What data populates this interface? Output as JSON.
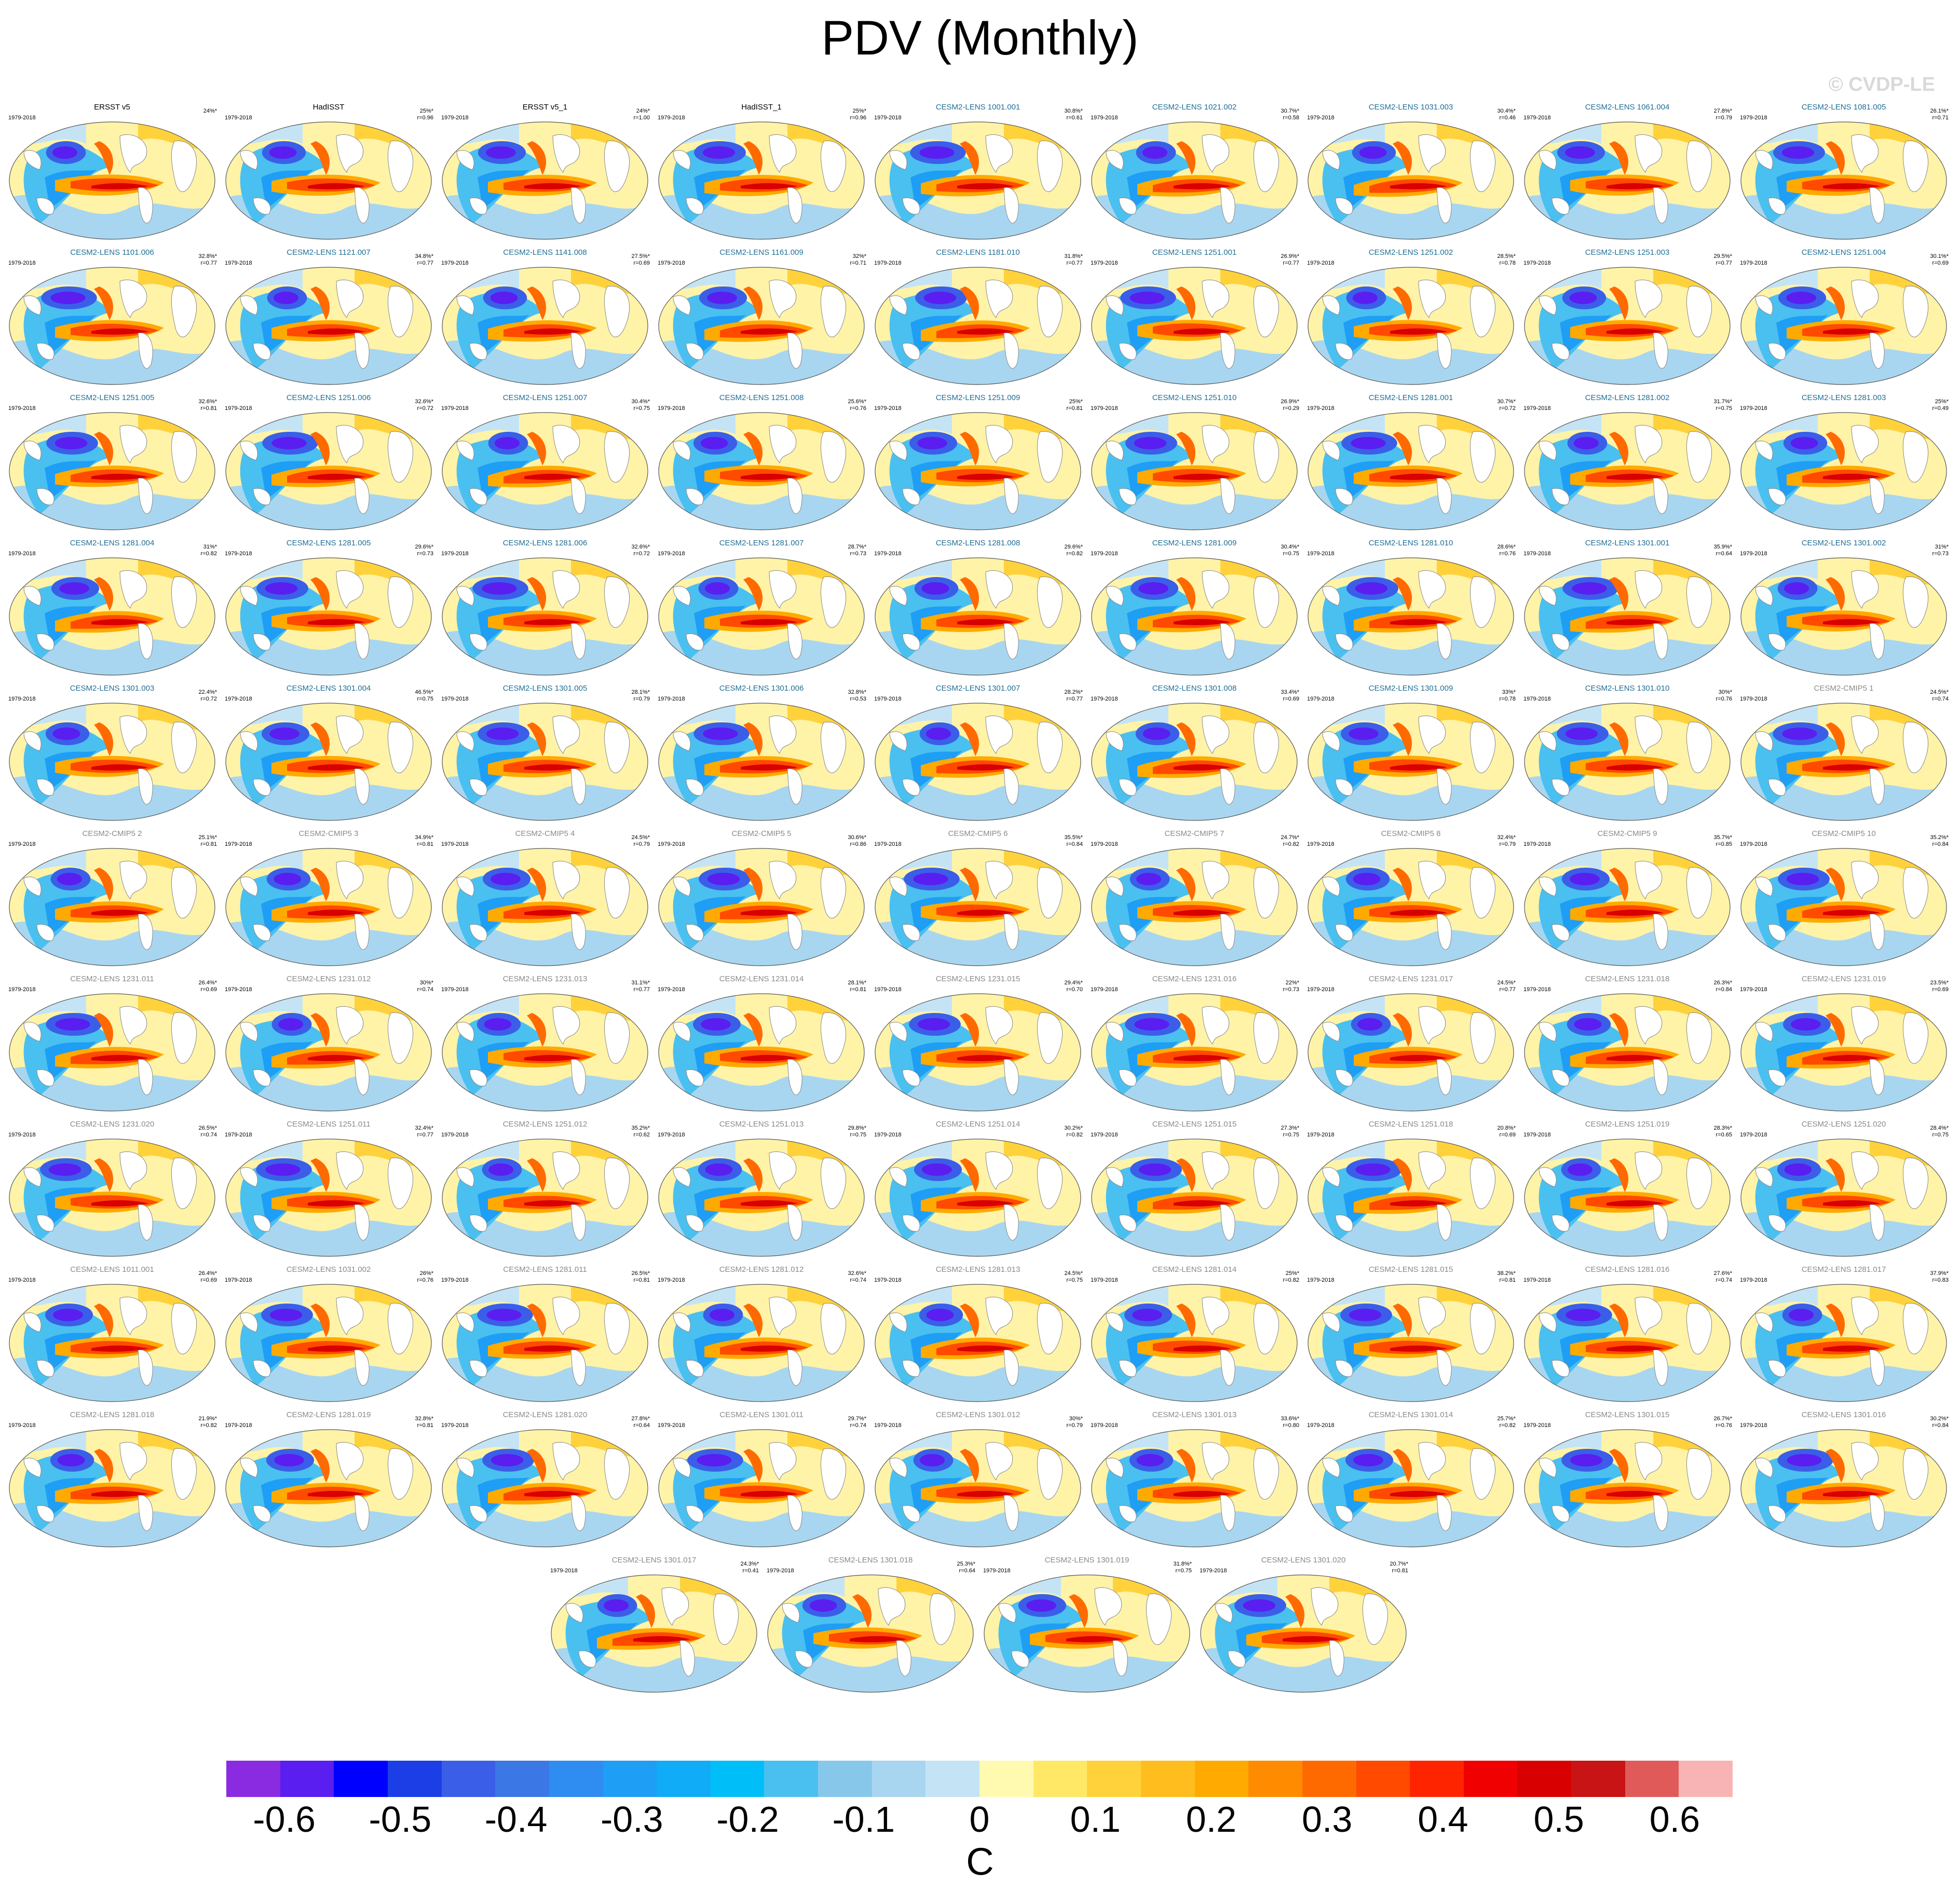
{
  "title": "PDV (Monthly)",
  "watermark": "© CVDP-LE",
  "chart_data": {
    "type": "heatmap",
    "title": "PDV (Monthly)",
    "variable": "SST regression pattern (global maps)",
    "unit": "C",
    "colorbar": {
      "ticks": [
        "-0.6",
        "-0.5",
        "-0.4",
        "-0.3",
        "-0.2",
        "-0.1",
        "0",
        "0.1",
        "0.2",
        "0.3",
        "0.4",
        "0.5",
        "0.6"
      ],
      "colors": [
        "#8a2be2",
        "#5a1ef0",
        "#0000ff",
        "#1c3ee6",
        "#3b5ee8",
        "#3b78e6",
        "#2f8cf0",
        "#1e9ef5",
        "#10acf7",
        "#00bff8",
        "#4ac0f0",
        "#87c8ea",
        "#a8d6f0",
        "#c4e4f5",
        "#fffab0",
        "#ffe866",
        "#ffd23c",
        "#ffbe1e",
        "#ffaa00",
        "#ff8c00",
        "#ff6a00",
        "#ff4a00",
        "#ff2400",
        "#f00000",
        "#d80000",
        "#c81414",
        "#e05a5a",
        "#f8b4b4"
      ],
      "range": [
        -0.65,
        0.65
      ]
    },
    "panels": [
      {
        "name": "ERSST v5",
        "period": "1979-2018",
        "pct": "24%*",
        "r": "",
        "kind": "obs"
      },
      {
        "name": "HadISST",
        "period": "1979-2018",
        "pct": "25%*",
        "r": "r=0.96",
        "kind": "obs"
      },
      {
        "name": "ERSST v5_1",
        "period": "1979-2018",
        "pct": "24%*",
        "r": "r=1.00",
        "kind": "obs"
      },
      {
        "name": "HadISST_1",
        "period": "1979-2018",
        "pct": "25%*",
        "r": "r=0.96",
        "kind": "obs"
      },
      {
        "name": "CESM2-LENS 1001.001",
        "period": "1979-2018",
        "pct": "30.8%*",
        "r": "r=0.61",
        "kind": "lens"
      },
      {
        "name": "CESM2-LENS 1021.002",
        "period": "1979-2018",
        "pct": "30.7%*",
        "r": "r=0.58",
        "kind": "lens"
      },
      {
        "name": "CESM2-LENS 1031.003",
        "period": "1979-2018",
        "pct": "30.4%*",
        "r": "r=0.46",
        "kind": "lens"
      },
      {
        "name": "CESM2-LENS 1061.004",
        "period": "1979-2018",
        "pct": "27.8%*",
        "r": "r=0.79",
        "kind": "lens"
      },
      {
        "name": "CESM2-LENS 1081.005",
        "period": "1979-2018",
        "pct": "26.1%*",
        "r": "r=0.71",
        "kind": "lens"
      },
      {
        "name": "CESM2-LENS 1101.006",
        "period": "1979-2018",
        "pct": "32.8%*",
        "r": "r=0.77",
        "kind": "lens"
      },
      {
        "name": "CESM2-LENS 1121.007",
        "period": "1979-2018",
        "pct": "34.8%*",
        "r": "r=0.77",
        "kind": "lens"
      },
      {
        "name": "CESM2-LENS 1141.008",
        "period": "1979-2018",
        "pct": "27.5%*",
        "r": "r=0.69",
        "kind": "lens"
      },
      {
        "name": "CESM2-LENS 1161.009",
        "period": "1979-2018",
        "pct": "32%*",
        "r": "r=0.71",
        "kind": "lens"
      },
      {
        "name": "CESM2-LENS 1181.010",
        "period": "1979-2018",
        "pct": "31.8%*",
        "r": "r=0.77",
        "kind": "lens"
      },
      {
        "name": "CESM2-LENS 1251.001",
        "period": "1979-2018",
        "pct": "26.9%*",
        "r": "r=0.77",
        "kind": "lens"
      },
      {
        "name": "CESM2-LENS 1251.002",
        "period": "1979-2018",
        "pct": "28.5%*",
        "r": "r=0.78",
        "kind": "lens"
      },
      {
        "name": "CESM2-LENS 1251.003",
        "period": "1979-2018",
        "pct": "29.5%*",
        "r": "r=0.77",
        "kind": "lens"
      },
      {
        "name": "CESM2-LENS 1251.004",
        "period": "1979-2018",
        "pct": "30.1%*",
        "r": "r=0.69",
        "kind": "lens"
      },
      {
        "name": "CESM2-LENS 1251.005",
        "period": "1979-2018",
        "pct": "32.6%*",
        "r": "r=0.81",
        "kind": "lens"
      },
      {
        "name": "CESM2-LENS 1251.006",
        "period": "1979-2018",
        "pct": "32.6%*",
        "r": "r=0.72",
        "kind": "lens"
      },
      {
        "name": "CESM2-LENS 1251.007",
        "period": "1979-2018",
        "pct": "30.4%*",
        "r": "r=0.75",
        "kind": "lens"
      },
      {
        "name": "CESM2-LENS 1251.008",
        "period": "1979-2018",
        "pct": "25.6%*",
        "r": "r=0.76",
        "kind": "lens"
      },
      {
        "name": "CESM2-LENS 1251.009",
        "period": "1979-2018",
        "pct": "25%*",
        "r": "r=0.81",
        "kind": "lens"
      },
      {
        "name": "CESM2-LENS 1251.010",
        "period": "1979-2018",
        "pct": "26.9%*",
        "r": "r=0.29",
        "kind": "lens"
      },
      {
        "name": "CESM2-LENS 1281.001",
        "period": "1979-2018",
        "pct": "30.7%*",
        "r": "r=0.72",
        "kind": "lens"
      },
      {
        "name": "CESM2-LENS 1281.002",
        "period": "1979-2018",
        "pct": "31.7%*",
        "r": "r=0.75",
        "kind": "lens"
      },
      {
        "name": "CESM2-LENS 1281.003",
        "period": "1979-2018",
        "pct": "25%*",
        "r": "r=0.49",
        "kind": "lens"
      },
      {
        "name": "CESM2-LENS 1281.004",
        "period": "1979-2018",
        "pct": "31%*",
        "r": "r=0.82",
        "kind": "lens"
      },
      {
        "name": "CESM2-LENS 1281.005",
        "period": "1979-2018",
        "pct": "29.6%*",
        "r": "r=0.73",
        "kind": "lens"
      },
      {
        "name": "CESM2-LENS 1281.006",
        "period": "1979-2018",
        "pct": "32.6%*",
        "r": "r=0.72",
        "kind": "lens"
      },
      {
        "name": "CESM2-LENS 1281.007",
        "period": "1979-2018",
        "pct": "28.7%*",
        "r": "r=0.73",
        "kind": "lens"
      },
      {
        "name": "CESM2-LENS 1281.008",
        "period": "1979-2018",
        "pct": "29.6%*",
        "r": "r=0.82",
        "kind": "lens"
      },
      {
        "name": "CESM2-LENS 1281.009",
        "period": "1979-2018",
        "pct": "30.4%*",
        "r": "r=0.75",
        "kind": "lens"
      },
      {
        "name": "CESM2-LENS 1281.010",
        "period": "1979-2018",
        "pct": "28.6%*",
        "r": "r=0.76",
        "kind": "lens"
      },
      {
        "name": "CESM2-LENS 1301.001",
        "period": "1979-2018",
        "pct": "35.9%*",
        "r": "r=0.64",
        "kind": "lens"
      },
      {
        "name": "CESM2-LENS 1301.002",
        "period": "1979-2018",
        "pct": "31%*",
        "r": "r=0.73",
        "kind": "lens"
      },
      {
        "name": "CESM2-LENS 1301.003",
        "period": "1979-2018",
        "pct": "22.4%*",
        "r": "r=0.72",
        "kind": "lens"
      },
      {
        "name": "CESM2-LENS 1301.004",
        "period": "1979-2018",
        "pct": "46.5%*",
        "r": "r=0.75",
        "kind": "lens"
      },
      {
        "name": "CESM2-LENS 1301.005",
        "period": "1979-2018",
        "pct": "28.1%*",
        "r": "r=0.79",
        "kind": "lens"
      },
      {
        "name": "CESM2-LENS 1301.006",
        "period": "1979-2018",
        "pct": "32.8%*",
        "r": "r=0.53",
        "kind": "lens"
      },
      {
        "name": "CESM2-LENS 1301.007",
        "period": "1979-2018",
        "pct": "28.2%*",
        "r": "r=0.77",
        "kind": "lens"
      },
      {
        "name": "CESM2-LENS 1301.008",
        "period": "1979-2018",
        "pct": "33.4%*",
        "r": "r=0.69",
        "kind": "lens"
      },
      {
        "name": "CESM2-LENS 1301.009",
        "period": "1979-2018",
        "pct": "33%*",
        "r": "r=0.78",
        "kind": "lens"
      },
      {
        "name": "CESM2-LENS 1301.010",
        "period": "1979-2018",
        "pct": "30%*",
        "r": "r=0.76",
        "kind": "lens"
      },
      {
        "name": "CESM2-CMIP5 1",
        "period": "1979-2018",
        "pct": "24.5%*",
        "r": "r=0.74",
        "kind": "other"
      },
      {
        "name": "CESM2-CMIP5 2",
        "period": "1979-2018",
        "pct": "25.1%*",
        "r": "r=0.81",
        "kind": "other"
      },
      {
        "name": "CESM2-CMIP5 3",
        "period": "1979-2018",
        "pct": "34.9%*",
        "r": "r=0.81",
        "kind": "other"
      },
      {
        "name": "CESM2-CMIP5 4",
        "period": "1979-2018",
        "pct": "24.5%*",
        "r": "r=0.79",
        "kind": "other"
      },
      {
        "name": "CESM2-CMIP5 5",
        "period": "1979-2018",
        "pct": "30.6%*",
        "r": "r=0.86",
        "kind": "other"
      },
      {
        "name": "CESM2-CMIP5 6",
        "period": "1979-2018",
        "pct": "35.5%*",
        "r": "r=0.84",
        "kind": "other"
      },
      {
        "name": "CESM2-CMIP5 7",
        "period": "1979-2018",
        "pct": "24.7%*",
        "r": "r=0.82",
        "kind": "other"
      },
      {
        "name": "CESM2-CMIP5 8",
        "period": "1979-2018",
        "pct": "32.4%*",
        "r": "r=0.79",
        "kind": "other"
      },
      {
        "name": "CESM2-CMIP5 9",
        "period": "1979-2018",
        "pct": "35.7%*",
        "r": "r=0.85",
        "kind": "other"
      },
      {
        "name": "CESM2-CMIP5 10",
        "period": "1979-2018",
        "pct": "35.2%*",
        "r": "r=0.84",
        "kind": "other"
      },
      {
        "name": "CESM2-LENS 1231.011",
        "period": "1979-2018",
        "pct": "26.4%*",
        "r": "r=0.69",
        "kind": "other"
      },
      {
        "name": "CESM2-LENS 1231.012",
        "period": "1979-2018",
        "pct": "30%*",
        "r": "r=0.74",
        "kind": "other"
      },
      {
        "name": "CESM2-LENS 1231.013",
        "period": "1979-2018",
        "pct": "31.1%*",
        "r": "r=0.77",
        "kind": "other"
      },
      {
        "name": "CESM2-LENS 1231.014",
        "period": "1979-2018",
        "pct": "28.1%*",
        "r": "r=0.81",
        "kind": "other"
      },
      {
        "name": "CESM2-LENS 1231.015",
        "period": "1979-2018",
        "pct": "29.4%*",
        "r": "r=0.70",
        "kind": "other"
      },
      {
        "name": "CESM2-LENS 1231.016",
        "period": "1979-2018",
        "pct": "22%*",
        "r": "r=0.73",
        "kind": "other"
      },
      {
        "name": "CESM2-LENS 1231.017",
        "period": "1979-2018",
        "pct": "24.5%*",
        "r": "r=0.77",
        "kind": "other"
      },
      {
        "name": "CESM2-LENS 1231.018",
        "period": "1979-2018",
        "pct": "26.3%*",
        "r": "r=0.84",
        "kind": "other"
      },
      {
        "name": "CESM2-LENS 1231.019",
        "period": "1979-2018",
        "pct": "23.5%*",
        "r": "r=0.69",
        "kind": "other"
      },
      {
        "name": "CESM2-LENS 1231.020",
        "period": "1979-2018",
        "pct": "26.5%*",
        "r": "r=0.74",
        "kind": "other"
      },
      {
        "name": "CESM2-LENS 1251.011",
        "period": "1979-2018",
        "pct": "32.4%*",
        "r": "r=0.77",
        "kind": "other"
      },
      {
        "name": "CESM2-LENS 1251.012",
        "period": "1979-2018",
        "pct": "35.2%*",
        "r": "r=0.62",
        "kind": "other"
      },
      {
        "name": "CESM2-LENS 1251.013",
        "period": "1979-2018",
        "pct": "29.8%*",
        "r": "r=0.75",
        "kind": "other"
      },
      {
        "name": "CESM2-LENS 1251.014",
        "period": "1979-2018",
        "pct": "30.2%*",
        "r": "r=0.82",
        "kind": "other"
      },
      {
        "name": "CESM2-LENS 1251.015",
        "period": "1979-2018",
        "pct": "27.3%*",
        "r": "r=0.75",
        "kind": "other"
      },
      {
        "name": "CESM2-LENS 1251.018",
        "period": "1979-2018",
        "pct": "20.8%*",
        "r": "r=0.69",
        "kind": "other"
      },
      {
        "name": "CESM2-LENS 1251.019",
        "period": "1979-2018",
        "pct": "28.3%*",
        "r": "r=0.65",
        "kind": "other"
      },
      {
        "name": "CESM2-LENS 1251.020",
        "period": "1979-2018",
        "pct": "28.4%*",
        "r": "r=0.75",
        "kind": "other"
      },
      {
        "name": "CESM2-LENS 1011.001",
        "period": "1979-2018",
        "pct": "26.4%*",
        "r": "r=0.69",
        "kind": "other"
      },
      {
        "name": "CESM2-LENS 1031.002",
        "period": "1979-2018",
        "pct": "26%*",
        "r": "r=0.76",
        "kind": "other"
      },
      {
        "name": "CESM2-LENS 1281.011",
        "period": "1979-2018",
        "pct": "26.5%*",
        "r": "r=0.81",
        "kind": "other"
      },
      {
        "name": "CESM2-LENS 1281.012",
        "period": "1979-2018",
        "pct": "32.6%*",
        "r": "r=0.74",
        "kind": "other"
      },
      {
        "name": "CESM2-LENS 1281.013",
        "period": "1979-2018",
        "pct": "24.5%*",
        "r": "r=0.75",
        "kind": "other"
      },
      {
        "name": "CESM2-LENS 1281.014",
        "period": "1979-2018",
        "pct": "25%*",
        "r": "r=0.82",
        "kind": "other"
      },
      {
        "name": "CESM2-LENS 1281.015",
        "period": "1979-2018",
        "pct": "38.2%*",
        "r": "r=0.81",
        "kind": "other"
      },
      {
        "name": "CESM2-LENS 1281.016",
        "period": "1979-2018",
        "pct": "27.6%*",
        "r": "r=0.74",
        "kind": "other"
      },
      {
        "name": "CESM2-LENS 1281.017",
        "period": "1979-2018",
        "pct": "37.9%*",
        "r": "r=0.83",
        "kind": "other"
      },
      {
        "name": "CESM2-LENS 1281.018",
        "period": "1979-2018",
        "pct": "21.9%*",
        "r": "r=0.82",
        "kind": "other"
      },
      {
        "name": "CESM2-LENS 1281.019",
        "period": "1979-2018",
        "pct": "32.8%*",
        "r": "r=0.81",
        "kind": "other"
      },
      {
        "name": "CESM2-LENS 1281.020",
        "period": "1979-2018",
        "pct": "27.8%*",
        "r": "r=0.64",
        "kind": "other"
      },
      {
        "name": "CESM2-LENS 1301.011",
        "period": "1979-2018",
        "pct": "29.7%*",
        "r": "r=0.74",
        "kind": "other"
      },
      {
        "name": "CESM2-LENS 1301.012",
        "period": "1979-2018",
        "pct": "30%*",
        "r": "r=0.79",
        "kind": "other"
      },
      {
        "name": "CESM2-LENS 1301.013",
        "period": "1979-2018",
        "pct": "33.6%*",
        "r": "r=0.80",
        "kind": "other"
      },
      {
        "name": "CESM2-LENS 1301.014",
        "period": "1979-2018",
        "pct": "25.7%*",
        "r": "r=0.82",
        "kind": "other"
      },
      {
        "name": "CESM2-LENS 1301.015",
        "period": "1979-2018",
        "pct": "26.7%*",
        "r": "r=0.76",
        "kind": "other"
      },
      {
        "name": "CESM2-LENS 1301.016",
        "period": "1979-2018",
        "pct": "30.2%*",
        "r": "r=0.84",
        "kind": "other"
      },
      {
        "name": "CESM2-LENS 1301.017",
        "period": "1979-2018",
        "pct": "24.3%*",
        "r": "r=0.41",
        "kind": "other"
      },
      {
        "name": "CESM2-LENS 1301.018",
        "period": "1979-2018",
        "pct": "25.3%*",
        "r": "r=0.64",
        "kind": "other"
      },
      {
        "name": "CESM2-LENS 1301.019",
        "period": "1979-2018",
        "pct": "31.8%*",
        "r": "r=0.75",
        "kind": "other"
      },
      {
        "name": "CESM2-LENS 1301.020",
        "period": "1979-2018",
        "pct": "20.7%*",
        "r": "r=0.81",
        "kind": "other"
      }
    ]
  }
}
